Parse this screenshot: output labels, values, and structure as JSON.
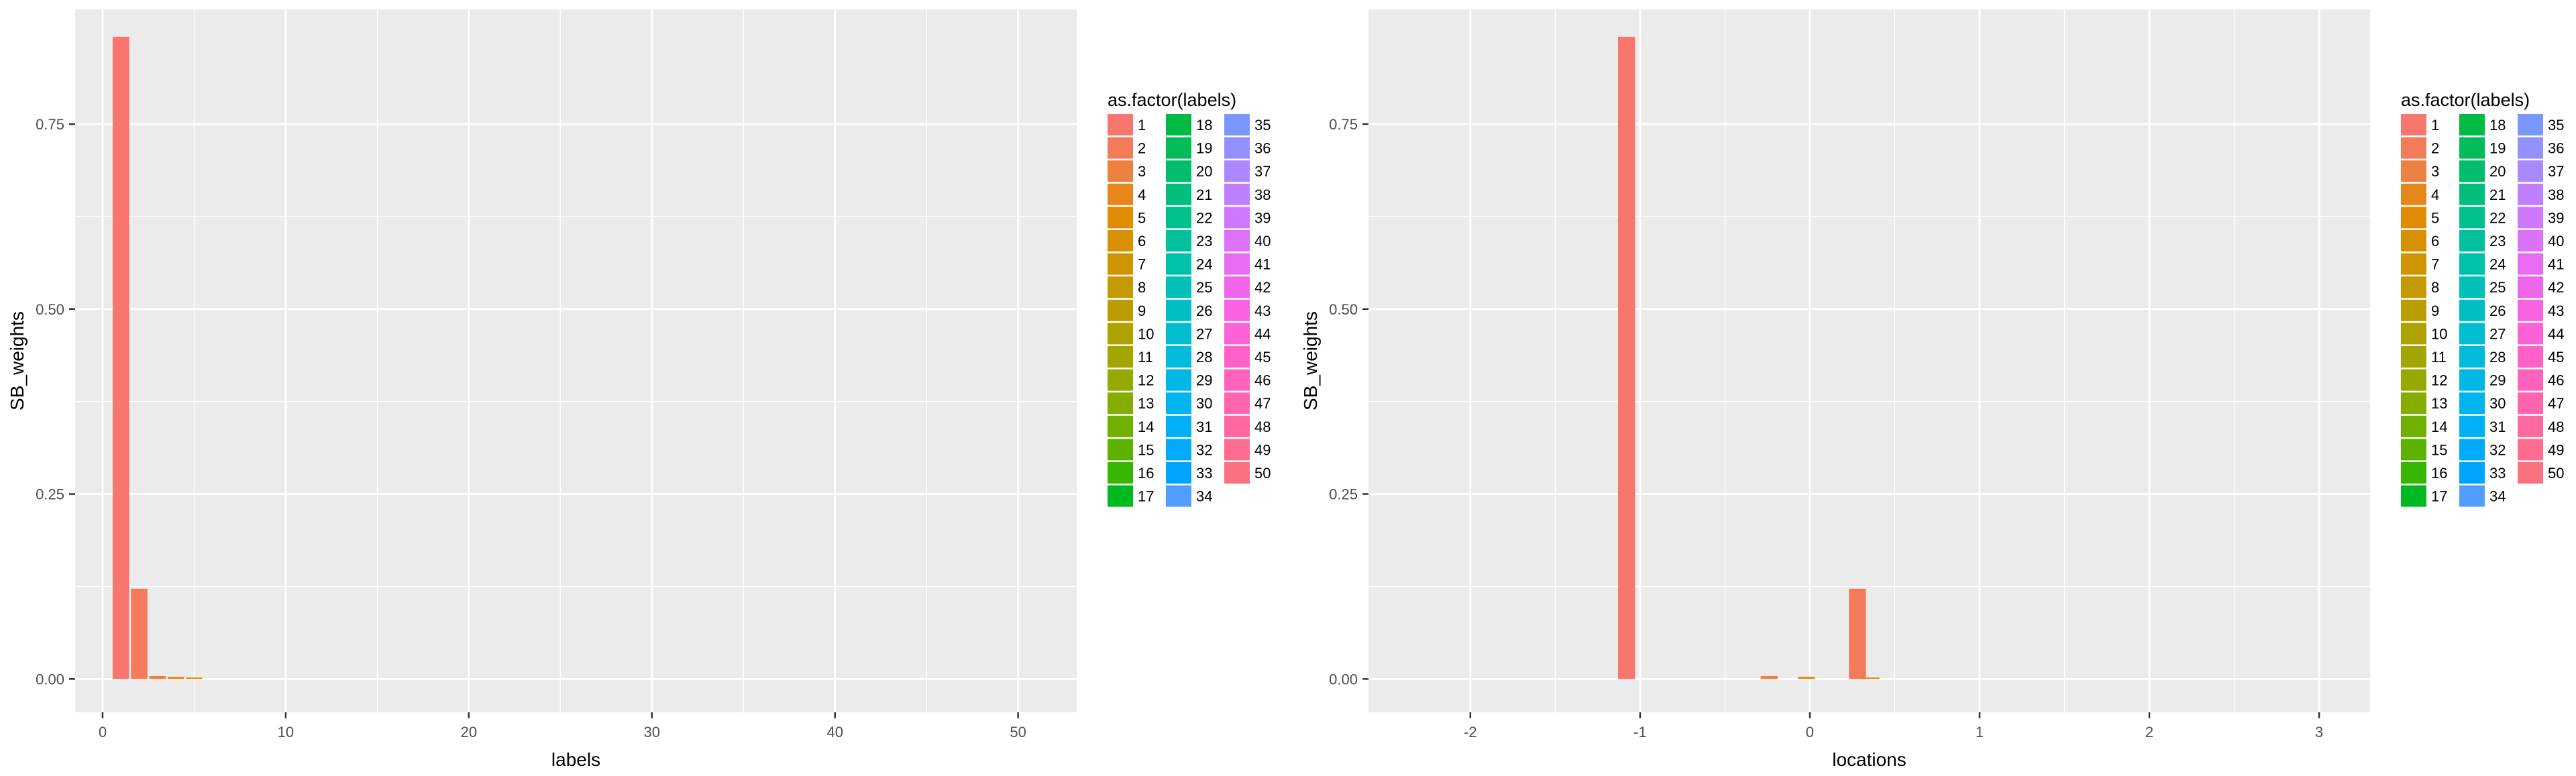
{
  "chart_data": [
    {
      "type": "bar",
      "xlabel": "labels",
      "ylabel": "SB_weights",
      "xlim": [
        -1.5,
        53.2
      ],
      "ylim": [
        -0.045,
        0.905
      ],
      "xticks": [
        0,
        10,
        20,
        30,
        40,
        50
      ],
      "xtick_labels": [
        "0",
        "10",
        "20",
        "30",
        "40",
        "50"
      ],
      "yticks": [
        0,
        0.25,
        0.5,
        0.75
      ],
      "ytick_labels": [
        "0.00",
        "0.25",
        "0.50",
        "0.75"
      ],
      "bar_width": 0.9,
      "grid": true,
      "legend": {
        "title": "as.factor(labels)",
        "position": "right",
        "columns": 3,
        "entries": [
          "1",
          "2",
          "3",
          "4",
          "5",
          "6",
          "7",
          "8",
          "9",
          "10",
          "11",
          "12",
          "13",
          "14",
          "15",
          "16",
          "17",
          "18",
          "19",
          "20",
          "21",
          "22",
          "23",
          "24",
          "25",
          "26",
          "27",
          "28",
          "29",
          "30",
          "31",
          "32",
          "33",
          "34",
          "35",
          "36",
          "37",
          "38",
          "39",
          "40",
          "41",
          "42",
          "43",
          "44",
          "45",
          "46",
          "47",
          "48",
          "49",
          "50"
        ]
      },
      "bars": [
        {
          "x": 1,
          "y": 0.868,
          "label": "1"
        },
        {
          "x": 2,
          "y": 0.122,
          "label": "2"
        },
        {
          "x": 3,
          "y": 0.004,
          "label": "3"
        },
        {
          "x": 4,
          "y": 0.003,
          "label": "4"
        },
        {
          "x": 5,
          "y": 0.002,
          "label": "5"
        }
      ]
    },
    {
      "type": "bar",
      "xlabel": "locations",
      "ylabel": "SB_weights",
      "xlim": [
        -2.6,
        3.3
      ],
      "ylim": [
        -0.045,
        0.905
      ],
      "xticks": [
        -2,
        -1,
        0,
        1,
        2,
        3
      ],
      "xtick_labels": [
        "-2",
        "-1",
        "0",
        "1",
        "2",
        "3"
      ],
      "yticks": [
        0,
        0.25,
        0.5,
        0.75
      ],
      "ytick_labels": [
        "0.00",
        "0.25",
        "0.50",
        "0.75"
      ],
      "bar_width": 0.1,
      "grid": true,
      "legend": {
        "title": "as.factor(labels)",
        "position": "right",
        "columns": 3,
        "entries": [
          "1",
          "2",
          "3",
          "4",
          "5",
          "6",
          "7",
          "8",
          "9",
          "10",
          "11",
          "12",
          "13",
          "14",
          "15",
          "16",
          "17",
          "18",
          "19",
          "20",
          "21",
          "22",
          "23",
          "24",
          "25",
          "26",
          "27",
          "28",
          "29",
          "30",
          "31",
          "32",
          "33",
          "34",
          "35",
          "36",
          "37",
          "38",
          "39",
          "40",
          "41",
          "42",
          "43",
          "44",
          "45",
          "46",
          "47",
          "48",
          "49",
          "50"
        ]
      },
      "bars": [
        {
          "x": -1.08,
          "y": 0.868,
          "label": "1"
        },
        {
          "x": 0.28,
          "y": 0.122,
          "label": "2"
        },
        {
          "x": -0.24,
          "y": 0.004,
          "label": "3"
        },
        {
          "x": -0.02,
          "y": 0.003,
          "label": "4"
        },
        {
          "x": 0.36,
          "y": 0.002,
          "label": "5"
        }
      ]
    }
  ]
}
